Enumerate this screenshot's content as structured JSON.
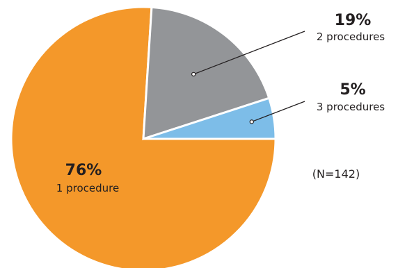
{
  "chart_data": {
    "type": "pie",
    "title": "",
    "slices": [
      {
        "value_label": "76%",
        "value": 76,
        "label": "1 procedure",
        "color": "#f4982a"
      },
      {
        "value_label": "19%",
        "value": 19,
        "label": "2 procedures",
        "color": "#939598"
      },
      {
        "value_label": "5%",
        "value": 5,
        "label": "3 procedures",
        "color": "#7dbde8"
      }
    ],
    "note": "(N=142)"
  }
}
